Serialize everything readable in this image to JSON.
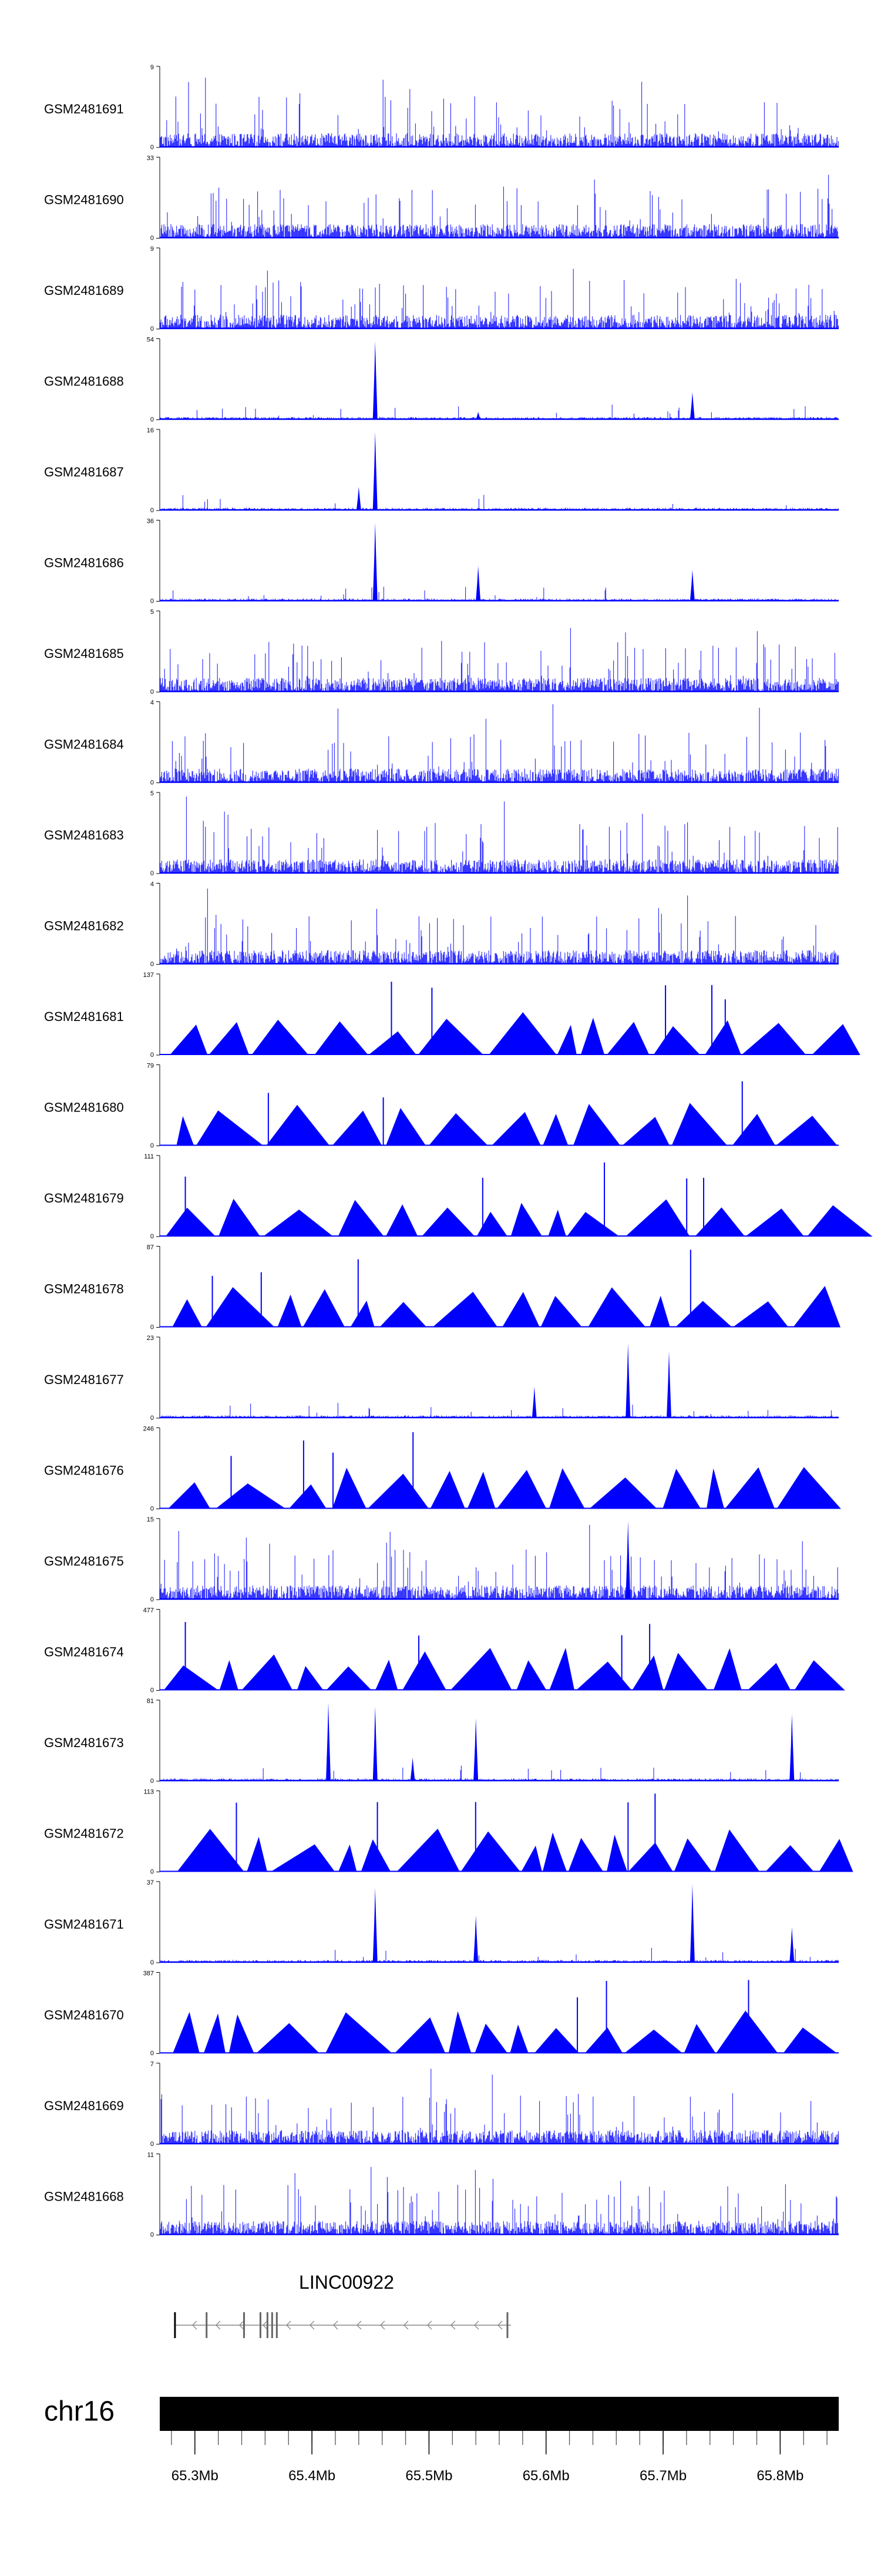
{
  "chart_data": {
    "type": "area",
    "title": "",
    "chromosome": "chr16",
    "x_range_mb": [
      65.27,
      65.85
    ],
    "colors": {
      "signal": "#0000ff",
      "axis": "#000000",
      "ideogram": "#000000",
      "gene": "#888888"
    },
    "tracks": [
      {
        "name": "GSM2481691",
        "ymax": "9",
        "ymin": "0",
        "style": "spiky",
        "peaks": []
      },
      {
        "name": "GSM2481690",
        "ymax": "33",
        "ymin": "0",
        "style": "spiky",
        "peaks": []
      },
      {
        "name": "GSM2481689",
        "ymax": "9",
        "ymin": "0",
        "style": "spiky",
        "peaks": []
      },
      {
        "name": "GSM2481688",
        "ymax": "54",
        "ymin": "0",
        "style": "sparse",
        "peaks": [
          [
            65.454,
            1.0
          ],
          [
            65.542,
            0.1
          ],
          [
            65.725,
            0.35
          ]
        ]
      },
      {
        "name": "GSM2481687",
        "ymax": "16",
        "ymin": "0",
        "style": "sparse",
        "peaks": [
          [
            65.454,
            1.0
          ],
          [
            65.44,
            0.3
          ]
        ]
      },
      {
        "name": "GSM2481686",
        "ymax": "36",
        "ymin": "0",
        "style": "sparse",
        "peaks": [
          [
            65.454,
            1.0
          ],
          [
            65.542,
            0.45
          ],
          [
            65.725,
            0.4
          ]
        ]
      },
      {
        "name": "GSM2481685",
        "ymax": "5",
        "ymin": "0",
        "style": "spiky",
        "peaks": []
      },
      {
        "name": "GSM2481684",
        "ymax": "4",
        "ymin": "0",
        "style": "spiky",
        "peaks": []
      },
      {
        "name": "GSM2481683",
        "ymax": "5",
        "ymin": "0",
        "style": "spiky",
        "peaks": []
      },
      {
        "name": "GSM2481682",
        "ymax": "4",
        "ymin": "0",
        "style": "spiky",
        "peaks": []
      },
      {
        "name": "GSM2481681",
        "ymax": "137",
        "ymin": "0",
        "style": "triangle",
        "peaks": []
      },
      {
        "name": "GSM2481680",
        "ymax": "79",
        "ymin": "0",
        "style": "triangle",
        "peaks": []
      },
      {
        "name": "GSM2481679",
        "ymax": "111",
        "ymin": "0",
        "style": "triangle",
        "peaks": []
      },
      {
        "name": "GSM2481678",
        "ymax": "87",
        "ymin": "0",
        "style": "triangle",
        "peaks": []
      },
      {
        "name": "GSM2481677",
        "ymax": "23",
        "ymin": "0",
        "style": "sparse",
        "peaks": [
          [
            65.67,
            0.95
          ],
          [
            65.705,
            0.85
          ],
          [
            65.59,
            0.4
          ]
        ]
      },
      {
        "name": "GSM2481676",
        "ymax": "246",
        "ymin": "0",
        "style": "triangle",
        "peaks": []
      },
      {
        "name": "GSM2481675",
        "ymax": "15",
        "ymin": "0",
        "style": "spiky",
        "peaks": [
          [
            65.67,
            1.0
          ]
        ]
      },
      {
        "name": "GSM2481674",
        "ymax": "477",
        "ymin": "0",
        "style": "triangle",
        "peaks": []
      },
      {
        "name": "GSM2481673",
        "ymax": "81",
        "ymin": "0",
        "style": "sparse",
        "peaks": [
          [
            65.414,
            1.0
          ],
          [
            65.454,
            0.95
          ],
          [
            65.54,
            0.8
          ],
          [
            65.81,
            0.85
          ],
          [
            65.486,
            0.3
          ]
        ]
      },
      {
        "name": "GSM2481672",
        "ymax": "113",
        "ymin": "0",
        "style": "triangle",
        "peaks": []
      },
      {
        "name": "GSM2481671",
        "ymax": "37",
        "ymin": "0",
        "style": "sparse",
        "peaks": [
          [
            65.454,
            0.95
          ],
          [
            65.54,
            0.6
          ],
          [
            65.725,
            1.0
          ],
          [
            65.81,
            0.45
          ]
        ]
      },
      {
        "name": "GSM2481670",
        "ymax": "387",
        "ymin": "0",
        "style": "triangle",
        "peaks": []
      },
      {
        "name": "GSM2481669",
        "ymax": "7",
        "ymin": "0",
        "style": "spiky",
        "peaks": []
      },
      {
        "name": "GSM2481668",
        "ymax": "11",
        "ymin": "0",
        "style": "spiky",
        "peaks": []
      }
    ],
    "gene": {
      "name": "LINC00922",
      "start_mb": 65.283,
      "end_mb": 65.57,
      "strand": "-",
      "exons_mb": [
        65.283,
        65.31,
        65.342,
        65.356,
        65.362,
        65.366,
        65.37,
        65.567
      ]
    },
    "x_ticks": [
      "65.3Mb",
      "65.4Mb",
      "65.5Mb",
      "65.6Mb",
      "65.7Mb",
      "65.8Mb"
    ],
    "x_tick_values": [
      65.3,
      65.4,
      65.5,
      65.6,
      65.7,
      65.8
    ]
  }
}
